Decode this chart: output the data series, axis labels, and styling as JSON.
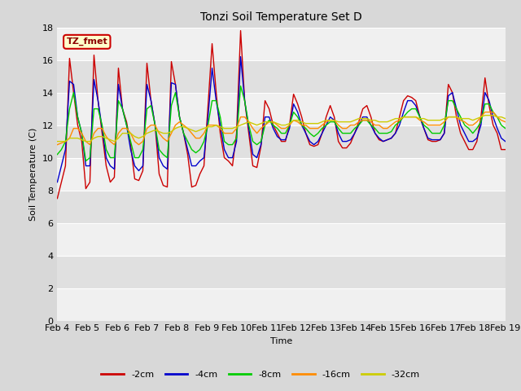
{
  "title": "Tonzi Soil Temperature Set D",
  "xlabel": "Time",
  "ylabel": "Soil Temperature (C)",
  "ylim": [
    0,
    18
  ],
  "yticks": [
    0,
    2,
    4,
    6,
    8,
    10,
    12,
    14,
    16,
    18
  ],
  "xtick_labels": [
    "Feb 4",
    "Feb 5",
    "Feb 6",
    "Feb 7",
    "Feb 8",
    "Feb 9",
    "Feb 10",
    "Feb 11",
    "Feb 12",
    "Feb 13",
    "Feb 14",
    "Feb 15",
    "Feb 16",
    "Feb 17",
    "Feb 18",
    "Feb 19"
  ],
  "annotation_text": "TZ_fmet",
  "series": {
    "-2cm": {
      "color": "#cc0000",
      "data": [
        7.5,
        8.5,
        9.5,
        16.1,
        14.0,
        12.0,
        11.0,
        8.1,
        8.5,
        16.3,
        13.5,
        11.5,
        9.5,
        8.5,
        8.8,
        15.5,
        13.0,
        12.2,
        10.8,
        8.7,
        8.6,
        9.2,
        15.8,
        13.5,
        12.0,
        9.0,
        8.3,
        8.2,
        15.9,
        14.5,
        12.5,
        11.5,
        10.2,
        8.2,
        8.3,
        9.0,
        9.5,
        13.2,
        17.0,
        14.0,
        11.5,
        10.0,
        9.8,
        9.5,
        11.5,
        17.8,
        13.5,
        11.5,
        9.5,
        9.4,
        10.7,
        13.5,
        13.0,
        12.0,
        11.5,
        11.0,
        11.0,
        12.0,
        13.9,
        13.3,
        12.5,
        11.5,
        10.8,
        10.7,
        10.8,
        11.5,
        12.5,
        13.2,
        12.5,
        11.0,
        10.6,
        10.6,
        10.9,
        11.5,
        12.2,
        13.0,
        13.2,
        12.5,
        11.5,
        11.1,
        11.0,
        11.1,
        11.2,
        11.5,
        12.5,
        13.5,
        13.8,
        13.7,
        13.5,
        12.5,
        11.8,
        11.1,
        11.0,
        11.0,
        11.1,
        11.5,
        14.5,
        14.0,
        12.5,
        11.5,
        11.0,
        10.5,
        10.5,
        11.0,
        12.5,
        14.9,
        13.2,
        12.0,
        11.5,
        10.5,
        10.5
      ]
    },
    "-4cm": {
      "color": "#0000cc",
      "data": [
        8.5,
        9.5,
        10.5,
        14.7,
        14.5,
        12.5,
        11.5,
        9.5,
        9.5,
        14.8,
        13.5,
        11.8,
        10.0,
        9.5,
        9.3,
        14.5,
        13.0,
        12.0,
        10.5,
        9.5,
        9.2,
        9.5,
        14.5,
        13.5,
        12.0,
        10.0,
        9.5,
        9.3,
        14.6,
        14.5,
        12.5,
        11.5,
        10.5,
        9.5,
        9.5,
        9.8,
        10.0,
        12.5,
        15.5,
        13.5,
        12.0,
        10.5,
        10.0,
        10.0,
        11.0,
        16.2,
        13.5,
        11.8,
        10.2,
        10.0,
        10.8,
        12.5,
        12.5,
        11.8,
        11.3,
        11.1,
        11.1,
        11.8,
        13.3,
        12.8,
        12.0,
        11.5,
        11.0,
        10.8,
        11.0,
        11.5,
        12.0,
        12.5,
        12.3,
        11.5,
        11.0,
        11.0,
        11.1,
        11.5,
        12.0,
        12.5,
        12.5,
        12.0,
        11.5,
        11.2,
        11.0,
        11.1,
        11.2,
        11.5,
        12.0,
        12.8,
        13.5,
        13.5,
        13.2,
        12.5,
        11.8,
        11.2,
        11.1,
        11.1,
        11.1,
        11.5,
        13.8,
        14.0,
        13.0,
        12.0,
        11.5,
        11.0,
        11.0,
        11.2,
        12.0,
        14.0,
        13.5,
        12.5,
        11.8,
        11.2,
        11.0
      ]
    },
    "-8cm": {
      "color": "#00cc00",
      "data": [
        10.2,
        10.5,
        11.0,
        13.0,
        14.0,
        12.5,
        11.5,
        9.8,
        10.0,
        13.0,
        13.0,
        12.0,
        10.5,
        10.0,
        10.0,
        13.5,
        13.0,
        12.0,
        11.0,
        10.0,
        10.0,
        10.5,
        13.0,
        13.2,
        12.0,
        10.5,
        10.2,
        10.0,
        13.2,
        14.0,
        12.5,
        11.5,
        11.0,
        10.5,
        10.3,
        10.5,
        11.0,
        12.0,
        13.5,
        13.5,
        12.5,
        11.0,
        10.8,
        10.8,
        11.2,
        14.4,
        13.5,
        12.0,
        11.0,
        10.8,
        11.0,
        12.0,
        12.3,
        12.0,
        11.8,
        11.5,
        11.5,
        12.0,
        12.8,
        12.5,
        12.0,
        11.8,
        11.5,
        11.3,
        11.5,
        11.8,
        12.0,
        12.2,
        12.2,
        11.8,
        11.5,
        11.5,
        11.5,
        11.8,
        12.0,
        12.3,
        12.3,
        12.0,
        11.8,
        11.5,
        11.5,
        11.5,
        11.6,
        12.0,
        12.2,
        12.5,
        12.8,
        13.0,
        13.0,
        12.5,
        12.0,
        11.8,
        11.5,
        11.5,
        11.5,
        12.0,
        13.5,
        13.5,
        13.0,
        12.5,
        12.0,
        11.8,
        11.5,
        11.8,
        12.2,
        13.3,
        13.3,
        12.8,
        12.5,
        12.0,
        11.8
      ]
    },
    "-16cm": {
      "color": "#ff8c00",
      "data": [
        10.8,
        10.9,
        11.0,
        11.2,
        11.8,
        11.8,
        11.5,
        11.0,
        10.8,
        11.5,
        11.8,
        11.8,
        11.3,
        11.0,
        10.8,
        11.5,
        11.8,
        11.8,
        11.5,
        11.0,
        10.8,
        11.0,
        11.8,
        12.0,
        12.0,
        11.5,
        11.2,
        11.0,
        11.5,
        12.0,
        12.2,
        12.0,
        11.8,
        11.5,
        11.2,
        11.2,
        11.5,
        12.0,
        12.0,
        12.0,
        11.8,
        11.5,
        11.5,
        11.5,
        11.8,
        12.5,
        12.5,
        12.2,
        11.8,
        11.5,
        11.8,
        12.0,
        12.2,
        12.2,
        12.0,
        11.8,
        11.8,
        12.0,
        12.3,
        12.2,
        12.0,
        12.0,
        11.8,
        11.8,
        11.8,
        12.0,
        12.2,
        12.3,
        12.3,
        12.0,
        11.8,
        11.8,
        12.0,
        12.0,
        12.2,
        12.3,
        12.3,
        12.2,
        12.0,
        12.0,
        11.8,
        11.8,
        12.0,
        12.2,
        12.3,
        12.5,
        12.5,
        12.5,
        12.5,
        12.3,
        12.2,
        12.0,
        12.0,
        12.0,
        12.0,
        12.2,
        12.5,
        12.5,
        12.5,
        12.3,
        12.2,
        12.0,
        12.0,
        12.2,
        12.5,
        12.8,
        12.8,
        12.8,
        12.5,
        12.3,
        12.2
      ]
    },
    "-32cm": {
      "color": "#cccc00",
      "data": [
        11.0,
        11.0,
        11.0,
        11.2,
        11.2,
        11.2,
        11.1,
        11.0,
        11.0,
        11.2,
        11.3,
        11.3,
        11.2,
        11.1,
        11.0,
        11.2,
        11.5,
        11.5,
        11.5,
        11.3,
        11.2,
        11.3,
        11.5,
        11.6,
        11.7,
        11.6,
        11.5,
        11.5,
        11.6,
        11.8,
        11.9,
        11.9,
        11.8,
        11.7,
        11.6,
        11.7,
        11.8,
        11.9,
        11.9,
        12.0,
        11.9,
        11.8,
        11.8,
        11.8,
        11.9,
        12.0,
        12.1,
        12.2,
        12.1,
        12.0,
        12.1,
        12.2,
        12.2,
        12.2,
        12.1,
        12.0,
        12.0,
        12.1,
        12.3,
        12.3,
        12.2,
        12.1,
        12.1,
        12.1,
        12.1,
        12.2,
        12.3,
        12.3,
        12.3,
        12.2,
        12.2,
        12.2,
        12.2,
        12.3,
        12.4,
        12.4,
        12.4,
        12.3,
        12.3,
        12.2,
        12.2,
        12.2,
        12.3,
        12.4,
        12.4,
        12.5,
        12.5,
        12.5,
        12.5,
        12.4,
        12.4,
        12.3,
        12.3,
        12.3,
        12.3,
        12.4,
        12.5,
        12.5,
        12.5,
        12.4,
        12.4,
        12.4,
        12.3,
        12.4,
        12.5,
        12.6,
        12.6,
        12.6,
        12.5,
        12.5,
        12.4
      ]
    }
  },
  "legend_entries": [
    "-2cm",
    "-4cm",
    "-8cm",
    "-16cm",
    "-32cm"
  ],
  "legend_colors": [
    "#cc0000",
    "#0000cc",
    "#00cc00",
    "#ff8c00",
    "#cccc00"
  ],
  "fig_bg_color": "#d8d8d8",
  "plot_bg_color": "#e8e8e8",
  "band_light": "#f0f0f0",
  "band_dark": "#e0e0e0",
  "annotation_box_color": "#ffffcc",
  "annotation_box_edge": "#cc0000",
  "grid_color": "#ffffff"
}
